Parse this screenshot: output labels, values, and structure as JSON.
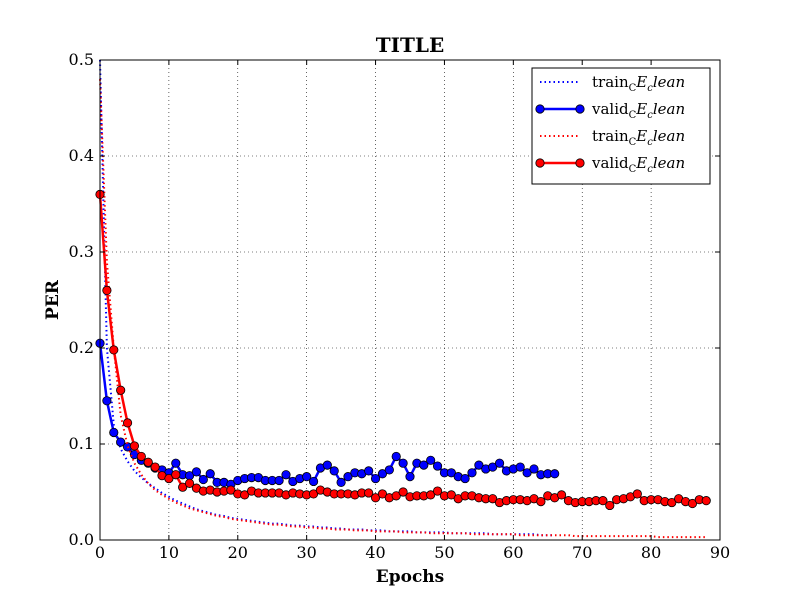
{
  "chart_data": {
    "type": "line",
    "title": "TITLE",
    "xlabel": "Epochs",
    "ylabel": "PER",
    "xlim": [
      0,
      90
    ],
    "ylim": [
      0.0,
      0.5
    ],
    "xticks": [
      "0",
      "10",
      "20",
      "30",
      "40",
      "50",
      "60",
      "70",
      "80",
      "90"
    ],
    "yticks": [
      "0.0",
      "0.1",
      "0.2",
      "0.3",
      "0.4",
      "0.5"
    ],
    "grid": true,
    "legend_position": "top-right",
    "series": [
      {
        "name": "train_CE_clean",
        "legend": {
          "base": "train",
          "sub": "C",
          "rest": "E",
          "sub2": "c",
          "tail": "lean"
        },
        "color": "#0000ff",
        "style": "dotted",
        "marker": "none",
        "x": [
          0,
          1,
          2,
          3,
          4,
          5,
          6,
          7,
          8,
          9,
          10,
          11,
          12,
          13,
          14,
          15,
          16,
          17,
          18,
          19,
          20,
          21,
          22,
          23,
          24,
          25,
          26,
          27,
          28,
          29,
          30,
          31,
          32,
          33,
          34,
          35,
          36,
          37,
          38,
          39,
          40,
          41,
          42,
          43,
          44,
          45,
          46,
          47,
          48,
          49,
          50,
          51,
          52,
          53,
          54,
          55,
          56,
          57,
          58,
          59,
          60,
          61,
          62,
          63,
          64,
          65,
          66
        ],
        "y": [
          0.5,
          0.2,
          0.12,
          0.095,
          0.082,
          0.072,
          0.065,
          0.059,
          0.054,
          0.049,
          0.045,
          0.041,
          0.038,
          0.035,
          0.032,
          0.03,
          0.028,
          0.026,
          0.025,
          0.023,
          0.022,
          0.021,
          0.02,
          0.019,
          0.018,
          0.017,
          0.017,
          0.016,
          0.015,
          0.015,
          0.014,
          0.014,
          0.013,
          0.013,
          0.012,
          0.012,
          0.011,
          0.011,
          0.011,
          0.01,
          0.01,
          0.01,
          0.009,
          0.009,
          0.009,
          0.009,
          0.008,
          0.008,
          0.008,
          0.008,
          0.008,
          0.007,
          0.007,
          0.007,
          0.007,
          0.007,
          0.007,
          0.006,
          0.006,
          0.006,
          0.006,
          0.006,
          0.006,
          0.006,
          0.005,
          0.005,
          0.005
        ]
      },
      {
        "name": "valid_CE_clean",
        "legend": {
          "base": "valid",
          "sub": "C",
          "rest": "E",
          "sub2": "c",
          "tail": "lean"
        },
        "color": "#0000ff",
        "style": "solid",
        "marker": "circle",
        "x": [
          0,
          1,
          2,
          3,
          4,
          5,
          6,
          7,
          8,
          9,
          10,
          11,
          12,
          13,
          14,
          15,
          16,
          17,
          18,
          19,
          20,
          21,
          22,
          23,
          24,
          25,
          26,
          27,
          28,
          29,
          30,
          31,
          32,
          33,
          34,
          35,
          36,
          37,
          38,
          39,
          40,
          41,
          42,
          43,
          44,
          45,
          46,
          47,
          48,
          49,
          50,
          51,
          52,
          53,
          54,
          55,
          56,
          57,
          58,
          59,
          60,
          61,
          62,
          63,
          64,
          65,
          66
        ],
        "y": [
          0.205,
          0.145,
          0.112,
          0.102,
          0.097,
          0.089,
          0.083,
          0.08,
          0.075,
          0.073,
          0.07,
          0.08,
          0.068,
          0.067,
          0.071,
          0.063,
          0.069,
          0.06,
          0.06,
          0.058,
          0.062,
          0.064,
          0.065,
          0.065,
          0.062,
          0.062,
          0.062,
          0.068,
          0.061,
          0.064,
          0.066,
          0.061,
          0.075,
          0.078,
          0.072,
          0.06,
          0.066,
          0.07,
          0.069,
          0.072,
          0.064,
          0.069,
          0.073,
          0.087,
          0.08,
          0.066,
          0.08,
          0.078,
          0.083,
          0.077,
          0.07,
          0.07,
          0.066,
          0.064,
          0.07,
          0.078,
          0.074,
          0.076,
          0.08,
          0.072,
          0.074,
          0.076,
          0.07,
          0.074,
          0.068,
          0.069,
          0.069
        ]
      },
      {
        "name": "train_CE_clean",
        "legend": {
          "base": "train",
          "sub": "C",
          "rest": "E",
          "sub2": "c",
          "tail": "lean"
        },
        "color": "#ff0000",
        "style": "dotted",
        "marker": "none",
        "x": [
          0,
          1,
          2,
          3,
          4,
          5,
          6,
          7,
          8,
          9,
          10,
          11,
          12,
          13,
          14,
          15,
          16,
          17,
          18,
          19,
          20,
          21,
          22,
          23,
          24,
          25,
          26,
          27,
          28,
          29,
          30,
          31,
          32,
          33,
          34,
          35,
          36,
          37,
          38,
          39,
          40,
          41,
          42,
          43,
          44,
          45,
          46,
          47,
          48,
          49,
          50,
          51,
          52,
          53,
          54,
          55,
          56,
          57,
          58,
          59,
          60,
          61,
          62,
          63,
          64,
          65,
          66,
          67,
          68,
          69,
          70,
          71,
          72,
          73,
          74,
          75,
          76,
          77,
          78,
          79,
          80,
          81,
          82,
          83,
          84,
          85,
          86,
          87,
          88
        ],
        "y": [
          0.48,
          0.29,
          0.2,
          0.13,
          0.098,
          0.08,
          0.068,
          0.059,
          0.052,
          0.047,
          0.043,
          0.039,
          0.036,
          0.033,
          0.031,
          0.029,
          0.027,
          0.025,
          0.024,
          0.022,
          0.021,
          0.02,
          0.019,
          0.018,
          0.017,
          0.016,
          0.016,
          0.015,
          0.014,
          0.014,
          0.013,
          0.013,
          0.012,
          0.012,
          0.011,
          0.011,
          0.011,
          0.01,
          0.01,
          0.01,
          0.009,
          0.009,
          0.009,
          0.009,
          0.008,
          0.008,
          0.008,
          0.008,
          0.007,
          0.007,
          0.007,
          0.007,
          0.007,
          0.007,
          0.006,
          0.006,
          0.006,
          0.006,
          0.006,
          0.006,
          0.006,
          0.005,
          0.005,
          0.005,
          0.005,
          0.005,
          0.005,
          0.005,
          0.005,
          0.004,
          0.004,
          0.004,
          0.004,
          0.004,
          0.004,
          0.004,
          0.004,
          0.004,
          0.004,
          0.004,
          0.004,
          0.003,
          0.003,
          0.003,
          0.003,
          0.003,
          0.003,
          0.003,
          0.003
        ]
      },
      {
        "name": "valid_CE_clean",
        "legend": {
          "base": "valid",
          "sub": "C",
          "rest": "E",
          "sub2": "c",
          "tail": "lean"
        },
        "color": "#ff0000",
        "style": "solid",
        "marker": "circle",
        "x": [
          0,
          1,
          2,
          3,
          4,
          5,
          6,
          7,
          8,
          9,
          10,
          11,
          12,
          13,
          14,
          15,
          16,
          17,
          18,
          19,
          20,
          21,
          22,
          23,
          24,
          25,
          26,
          27,
          28,
          29,
          30,
          31,
          32,
          33,
          34,
          35,
          36,
          37,
          38,
          39,
          40,
          41,
          42,
          43,
          44,
          45,
          46,
          47,
          48,
          49,
          50,
          51,
          52,
          53,
          54,
          55,
          56,
          57,
          58,
          59,
          60,
          61,
          62,
          63,
          64,
          65,
          66,
          67,
          68,
          69,
          70,
          71,
          72,
          73,
          74,
          75,
          76,
          77,
          78,
          79,
          80,
          81,
          82,
          83,
          84,
          85,
          86,
          87,
          88
        ],
        "y": [
          0.36,
          0.26,
          0.198,
          0.156,
          0.122,
          0.098,
          0.087,
          0.081,
          0.076,
          0.067,
          0.064,
          0.068,
          0.055,
          0.059,
          0.054,
          0.051,
          0.052,
          0.05,
          0.051,
          0.052,
          0.048,
          0.047,
          0.051,
          0.049,
          0.049,
          0.049,
          0.049,
          0.047,
          0.049,
          0.048,
          0.047,
          0.048,
          0.052,
          0.05,
          0.048,
          0.048,
          0.048,
          0.047,
          0.049,
          0.049,
          0.044,
          0.048,
          0.044,
          0.046,
          0.05,
          0.045,
          0.046,
          0.046,
          0.047,
          0.051,
          0.046,
          0.047,
          0.043,
          0.046,
          0.046,
          0.044,
          0.043,
          0.043,
          0.039,
          0.041,
          0.042,
          0.042,
          0.041,
          0.043,
          0.04,
          0.046,
          0.044,
          0.047,
          0.041,
          0.039,
          0.04,
          0.04,
          0.041,
          0.041,
          0.036,
          0.042,
          0.043,
          0.045,
          0.048,
          0.041,
          0.042,
          0.042,
          0.04,
          0.039,
          0.043,
          0.04,
          0.038,
          0.042,
          0.041
        ]
      }
    ]
  }
}
